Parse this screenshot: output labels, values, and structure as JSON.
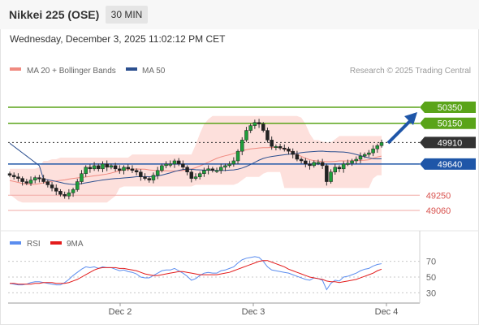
{
  "header": {
    "title": "Nikkei 225 (OSE)",
    "timeframe": "30 MIN",
    "datetime": "Wednesday, December 3, 2025 11:02:12 PM CET"
  },
  "price_panel": {
    "legend": [
      {
        "label": "MA 20 + Bollinger Bands",
        "color": "#f08a80"
      },
      {
        "label": "MA 50",
        "color": "#2b4f8f"
      }
    ],
    "credit": "Research © 2025 Trading Central",
    "levels": [
      {
        "label": "50350",
        "value": 50350,
        "color": "#5aa419",
        "style": "tag"
      },
      {
        "label": "50150",
        "value": 50150,
        "color": "#5aa419",
        "style": "tag"
      },
      {
        "label": "49910",
        "value": 49910,
        "color": "#333333",
        "style": "tag"
      },
      {
        "label": "49640",
        "value": 49640,
        "color": "#1f56a8",
        "style": "tag"
      },
      {
        "label": "49250",
        "value": 49250,
        "color": "#d9534f",
        "style": "text"
      },
      {
        "label": "49060",
        "value": 49060,
        "color": "#d9534f",
        "style": "text"
      }
    ],
    "arrow_color": "#1f56a8"
  },
  "rsi_panel": {
    "legend": [
      {
        "label": "RSI",
        "color": "#5b8def"
      },
      {
        "label": "9MA",
        "color": "#e31b1b"
      }
    ],
    "ticks": [
      "70",
      "50",
      "30"
    ]
  },
  "x_axis": {
    "labels": [
      "Dec 2",
      "Dec 3",
      "Dec 4"
    ]
  },
  "chart_data": {
    "type": "candlestick",
    "y_ticks": [],
    "closes": [
      49500,
      49480,
      49460,
      49420,
      49400,
      49440,
      49470,
      49460,
      49420,
      49380,
      49340,
      49300,
      49260,
      49240,
      49280,
      49320,
      49420,
      49520,
      49600,
      49580,
      49620,
      49580,
      49640,
      49600,
      49620,
      49580,
      49560,
      49600,
      49580,
      49560,
      49540,
      49480,
      49460,
      49440,
      49500,
      49560,
      49620,
      49640,
      49640,
      49680,
      49640,
      49600,
      49540,
      49460,
      49480,
      49520,
      49560,
      49580,
      49560,
      49560,
      49600,
      49620,
      49640,
      49680,
      49800,
      49940,
      50060,
      50120,
      50160,
      50140,
      50060,
      49940,
      49860,
      49860,
      49840,
      49830,
      49800,
      49760,
      49700,
      49680,
      49640,
      49620,
      49660,
      49660,
      49620,
      49420,
      49540,
      49600,
      49580,
      49640,
      49650,
      49680,
      49700,
      49740,
      49760,
      49780,
      49830,
      49870,
      49910
    ],
    "rsi": [
      42,
      41,
      40,
      40,
      41,
      43,
      44,
      44,
      43,
      42,
      41,
      40,
      40,
      43,
      47,
      52,
      56,
      60,
      63,
      62,
      63,
      61,
      63,
      62,
      62,
      60,
      58,
      59,
      57,
      56,
      54,
      50,
      49,
      49,
      52,
      55,
      58,
      59,
      59,
      61,
      58,
      55,
      51,
      46,
      48,
      52,
      55,
      56,
      55,
      55,
      58,
      59,
      61,
      63,
      68,
      72,
      74,
      75,
      76,
      75,
      70,
      63,
      59,
      58,
      57,
      56,
      55,
      53,
      51,
      49,
      47,
      46,
      49,
      48,
      46,
      34,
      42,
      46,
      45,
      50,
      51,
      53,
      55,
      58,
      60,
      61,
      64,
      66,
      67
    ],
    "rsi_ma": [
      42,
      42,
      41,
      41,
      41,
      41,
      42,
      42,
      43,
      43,
      43,
      42,
      42,
      42,
      43,
      45,
      47,
      50,
      53,
      56,
      59,
      61,
      62,
      62,
      62,
      62,
      61,
      61,
      60,
      59,
      58,
      56,
      54,
      53,
      52,
      52,
      53,
      54,
      55,
      56,
      57,
      57,
      56,
      55,
      54,
      53,
      53,
      53,
      53,
      53,
      54,
      55,
      56,
      58,
      60,
      62,
      64,
      66,
      68,
      70,
      71,
      71,
      69,
      67,
      65,
      63,
      60,
      58,
      56,
      54,
      52,
      50,
      49,
      48,
      47,
      45,
      44,
      44,
      43,
      44,
      45,
      46,
      47,
      49,
      51,
      53,
      55,
      58,
      60
    ],
    "rsi_ylim": [
      20,
      80
    ]
  }
}
